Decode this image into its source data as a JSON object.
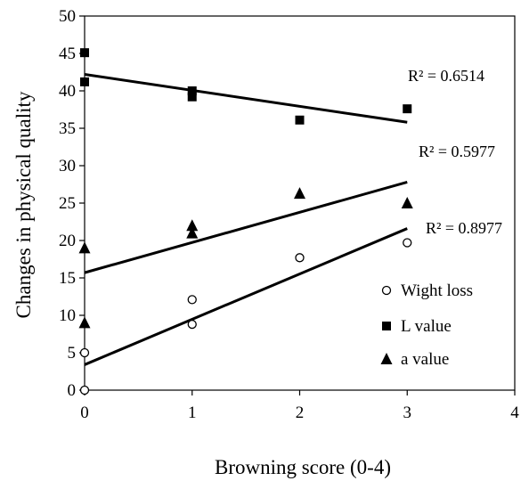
{
  "chart_data": {
    "type": "scatter",
    "xlabel": "Browning score (0-4)",
    "ylabel": "Changes in physical quality",
    "xlim": [
      0,
      4
    ],
    "ylim": [
      0,
      50
    ],
    "x_ticks": [
      0,
      1,
      2,
      3,
      4
    ],
    "y_ticks": [
      0,
      5,
      10,
      15,
      20,
      25,
      30,
      35,
      40,
      45,
      50
    ],
    "x_tick_labels": [
      "0",
      "1",
      "2",
      "3",
      "4"
    ],
    "y_tick_labels": [
      "0",
      "5",
      "10",
      "15",
      "20",
      "25",
      "30",
      "35",
      "40",
      "45",
      "50"
    ],
    "grid": false,
    "legend_position": "bottom-right",
    "series": [
      {
        "name": "Wight loss",
        "marker": "circle-open",
        "points": [
          [
            0,
            0
          ],
          [
            0,
            5
          ],
          [
            1,
            8.8
          ],
          [
            1,
            12.1
          ],
          [
            2,
            17.7
          ],
          [
            3,
            19.7
          ]
        ],
        "trendline": [
          [
            0,
            3.4
          ],
          [
            3,
            21.6
          ]
        ],
        "r2_label": "R² = 0.8977"
      },
      {
        "name": "L value",
        "marker": "square-filled",
        "points": [
          [
            0,
            41.2
          ],
          [
            0,
            45.1
          ],
          [
            1,
            39.2
          ],
          [
            1,
            40
          ],
          [
            2,
            36.1
          ],
          [
            3,
            37.6
          ]
        ],
        "trendline": [
          [
            0,
            42.2
          ],
          [
            3,
            35.8
          ]
        ],
        "r2_label": "R² = 0.6514"
      },
      {
        "name": "a value",
        "marker": "triangle-filled",
        "points": [
          [
            0,
            9
          ],
          [
            0,
            19
          ],
          [
            1,
            21
          ],
          [
            1,
            22
          ],
          [
            2,
            26.3
          ],
          [
            3,
            25
          ]
        ],
        "trendline": [
          [
            0,
            15.7
          ],
          [
            3,
            27.8
          ]
        ],
        "r2_label": "R² = 0.5977"
      }
    ]
  }
}
